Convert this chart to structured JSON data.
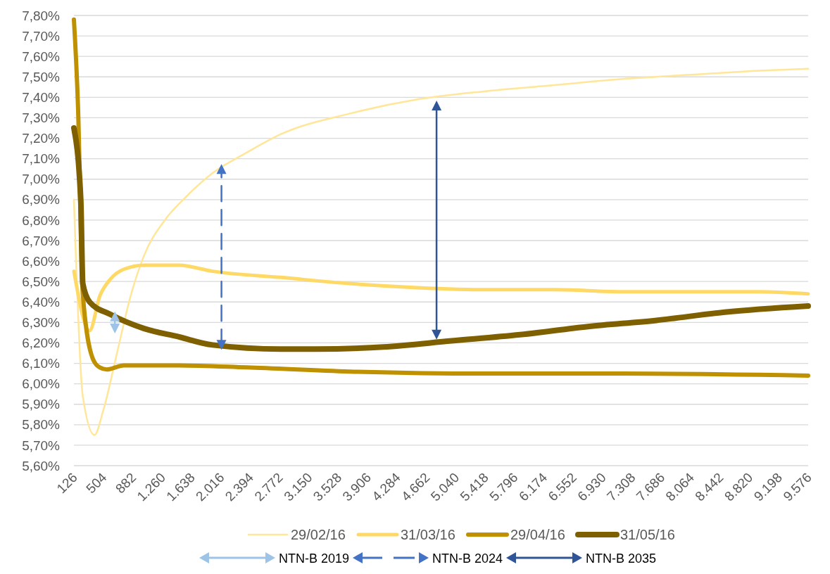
{
  "chart_data": {
    "type": "line",
    "legend": "bottom",
    "grid": "y",
    "xlim": [
      126,
      9576
    ],
    "xticks": [
      {
        "value": 126,
        "label": "126"
      },
      {
        "value": 504,
        "label": "504"
      },
      {
        "value": 882,
        "label": "882"
      },
      {
        "value": 1260,
        "label": "1.260"
      },
      {
        "value": 1638,
        "label": "1.638"
      },
      {
        "value": 2016,
        "label": "2.016"
      },
      {
        "value": 2394,
        "label": "2.394"
      },
      {
        "value": 2772,
        "label": "2.772"
      },
      {
        "value": 3150,
        "label": "3.150"
      },
      {
        "value": 3528,
        "label": "3.528"
      },
      {
        "value": 3906,
        "label": "3.906"
      },
      {
        "value": 4284,
        "label": "4.284"
      },
      {
        "value": 4662,
        "label": "4.662"
      },
      {
        "value": 5040,
        "label": "5.040"
      },
      {
        "value": 5418,
        "label": "5.418"
      },
      {
        "value": 5796,
        "label": "5.796"
      },
      {
        "value": 6174,
        "label": "6.174"
      },
      {
        "value": 6552,
        "label": "6.552"
      },
      {
        "value": 6930,
        "label": "6.930"
      },
      {
        "value": 7308,
        "label": "7.308"
      },
      {
        "value": 7686,
        "label": "7.686"
      },
      {
        "value": 8064,
        "label": "8.064"
      },
      {
        "value": 8442,
        "label": "8.442"
      },
      {
        "value": 8820,
        "label": "8.820"
      },
      {
        "value": 9198,
        "label": "9.198"
      },
      {
        "value": 9576,
        "label": "9.576"
      }
    ],
    "ylim": [
      5.6,
      7.8
    ],
    "yticks": [
      {
        "value": 5.6,
        "label": "5,60%"
      },
      {
        "value": 5.7,
        "label": "5,70%"
      },
      {
        "value": 5.8,
        "label": "5,80%"
      },
      {
        "value": 5.9,
        "label": "5,90%"
      },
      {
        "value": 6.0,
        "label": "6,00%"
      },
      {
        "value": 6.1,
        "label": "6,10%"
      },
      {
        "value": 6.2,
        "label": "6,20%"
      },
      {
        "value": 6.3,
        "label": "6,30%"
      },
      {
        "value": 6.4,
        "label": "6,40%"
      },
      {
        "value": 6.5,
        "label": "6,50%"
      },
      {
        "value": 6.6,
        "label": "6,60%"
      },
      {
        "value": 6.7,
        "label": "6,70%"
      },
      {
        "value": 6.8,
        "label": "6,80%"
      },
      {
        "value": 6.9,
        "label": "6,90%"
      },
      {
        "value": 7.0,
        "label": "7,00%"
      },
      {
        "value": 7.1,
        "label": "7,10%"
      },
      {
        "value": 7.2,
        "label": "7,20%"
      },
      {
        "value": 7.3,
        "label": "7,30%"
      },
      {
        "value": 7.4,
        "label": "7,40%"
      },
      {
        "value": 7.5,
        "label": "7,50%"
      },
      {
        "value": 7.6,
        "label": "7,60%"
      },
      {
        "value": 7.7,
        "label": "7,70%"
      },
      {
        "value": 7.8,
        "label": "7,80%"
      }
    ],
    "series": [
      {
        "name": "29/02/16",
        "color": "#ffe699",
        "x": [
          126,
          240,
          390,
          504,
          680,
          856,
          1032,
          1296,
          1559,
          1911,
          2350,
          2790,
          3669,
          4548,
          5427,
          6306,
          7185,
          8064,
          8943,
          9576
        ],
        "values": [
          6.9,
          5.94,
          5.75,
          5.87,
          6.15,
          6.43,
          6.63,
          6.8,
          6.91,
          7.03,
          7.13,
          7.22,
          7.32,
          7.39,
          7.43,
          7.46,
          7.49,
          7.51,
          7.53,
          7.54
        ]
      },
      {
        "name": "31/03/16",
        "color": "#ffd966",
        "x": [
          126,
          328,
          460,
          592,
          768,
          1031,
          1471,
          1911,
          2790,
          3669,
          4548,
          5427,
          6306,
          7185,
          8064,
          8943,
          9576
        ],
        "values": [
          6.55,
          6.26,
          6.43,
          6.51,
          6.56,
          6.58,
          6.58,
          6.55,
          6.52,
          6.49,
          6.47,
          6.46,
          6.46,
          6.45,
          6.45,
          6.45,
          6.44
        ]
      },
      {
        "name": "29/04/16",
        "color": "#bf9000",
        "x": [
          126,
          179,
          240,
          372,
          460,
          548,
          768,
          1471,
          2350,
          3669,
          5427,
          7185,
          9576
        ],
        "values": [
          7.78,
          7.35,
          6.44,
          6.12,
          6.08,
          6.07,
          6.09,
          6.09,
          6.08,
          6.06,
          6.05,
          6.05,
          6.04
        ]
      },
      {
        "name": "31/05/16",
        "color": "#7f6000",
        "x": [
          126,
          214,
          240,
          328,
          592,
          1031,
          1471,
          1911,
          2790,
          3229,
          4108,
          4987,
          5866,
          6745,
          7624,
          8503,
          9576
        ],
        "values": [
          7.25,
          6.9,
          6.49,
          6.4,
          6.34,
          6.27,
          6.23,
          6.19,
          6.17,
          6.17,
          6.18,
          6.21,
          6.24,
          6.28,
          6.31,
          6.35,
          6.38
        ]
      },
      {
        "name": "NTN-B 2019",
        "type": "line",
        "marker": "triangle",
        "line_style": "solid",
        "color": "#9dc3e6",
        "x": [
          653,
          653
        ],
        "values": [
          6.27,
          6.33
        ]
      },
      {
        "name": "NTN-B 2024",
        "type": "line",
        "marker": "triangle",
        "line_style": "dashed",
        "color": "#4472c4",
        "x": [
          2025,
          2025
        ],
        "values": [
          6.19,
          7.05
        ]
      },
      {
        "name": "NTN-B 2035",
        "type": "line",
        "marker": "triangle",
        "line_style": "solid",
        "color": "#2f5597",
        "x": [
          4793,
          4793
        ],
        "values": [
          6.24,
          7.36
        ]
      }
    ]
  }
}
